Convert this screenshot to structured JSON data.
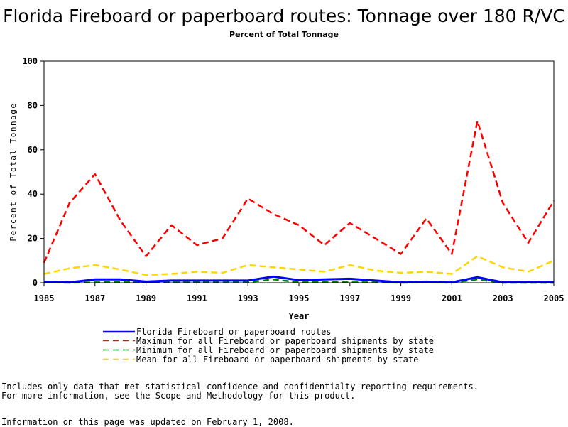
{
  "chart_data": {
    "type": "line",
    "title": "Florida Fireboard or paperboard routes: Tonnage over 180 R/VC",
    "subtitle": "Percent of Total Tonnage",
    "xlabel": "Year",
    "ylabel": "Percent of Total Tonnage",
    "xlim": [
      1985,
      2005
    ],
    "ylim": [
      0,
      100
    ],
    "x_ticks": [
      1985,
      1987,
      1989,
      1991,
      1993,
      1995,
      1997,
      1999,
      2001,
      2003,
      2005
    ],
    "y_ticks": [
      0,
      20,
      40,
      60,
      80,
      100
    ],
    "grid": false,
    "legend_position": "bottom",
    "x": [
      1985,
      1986,
      1987,
      1988,
      1989,
      1990,
      1991,
      1992,
      1993,
      1994,
      1995,
      1996,
      1997,
      1998,
      1999,
      2000,
      2001,
      2002,
      2003,
      2004,
      2005
    ],
    "series": [
      {
        "name": "Florida Fireboard or paperboard routes",
        "color": "#0000ff",
        "dash": "solid",
        "values": [
          0.5,
          0.2,
          1.5,
          1.5,
          0.5,
          1.0,
          1.0,
          1.0,
          1.0,
          2.8,
          1.2,
          1.5,
          1.8,
          1.0,
          0.2,
          0.5,
          0.2,
          2.5,
          0.2,
          0.3,
          0.3
        ]
      },
      {
        "name": "Maximum for all Fireboard or paperboard shipments by state",
        "color": "#ff0000",
        "dash": "dash",
        "values": [
          9,
          36,
          49,
          28,
          12,
          26,
          17,
          20,
          38,
          31,
          26,
          17,
          27,
          20,
          13,
          29,
          13,
          73,
          36,
          18,
          37
        ]
      },
      {
        "name": "Minimum for all Fireboard or paperboard shipments by state",
        "color": "#008000",
        "dash": "dash",
        "values": [
          0.2,
          0,
          0.2,
          0.3,
          0.2,
          0.5,
          0.5,
          0.2,
          0.3,
          1.5,
          0.2,
          0.3,
          0.2,
          0.2,
          0,
          0.2,
          0,
          1.5,
          0,
          0,
          0
        ]
      },
      {
        "name": "Mean for all Fireboard or paperboard shipments by state",
        "color": "#ffd700",
        "dash": "dash",
        "values": [
          4,
          6.5,
          8,
          6,
          3.5,
          4,
          5,
          4.5,
          8,
          7,
          6,
          5,
          8,
          5.5,
          4.5,
          5,
          4,
          12,
          7,
          5,
          10
        ]
      }
    ]
  },
  "notes": {
    "line1": "Includes only data that met statistical confidence and confidentialty reporting requirements.",
    "line2": "For more information, see the Scope and Methodology for this product.",
    "updated": "Information on this page was updated on February 1, 2008."
  }
}
